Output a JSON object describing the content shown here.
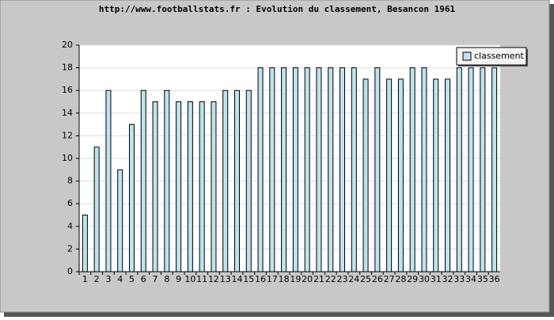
{
  "chart_data": {
    "type": "bar",
    "title": "http://www.footballstats.fr : Evolution du classement, Besancon 1961",
    "categories": [
      "1",
      "2",
      "3",
      "4",
      "5",
      "6",
      "7",
      "8",
      "9",
      "10",
      "11",
      "12",
      "13",
      "14",
      "15",
      "16",
      "17",
      "18",
      "19",
      "20",
      "21",
      "22",
      "23",
      "24",
      "25",
      "26",
      "27",
      "28",
      "29",
      "30",
      "31",
      "32",
      "33",
      "34",
      "35",
      "36"
    ],
    "series": [
      {
        "name": "classement",
        "color": "#bfe3ee",
        "values": [
          5,
          11,
          16,
          9,
          13,
          16,
          15,
          16,
          15,
          15,
          15,
          15,
          16,
          16,
          16,
          18,
          18,
          18,
          18,
          18,
          18,
          18,
          18,
          18,
          17,
          18,
          17,
          17,
          18,
          18,
          17,
          17,
          18,
          18,
          18,
          18
        ]
      }
    ],
    "ylim": [
      0,
      20
    ],
    "yticks": [
      0,
      2,
      4,
      6,
      8,
      10,
      12,
      14,
      16,
      18,
      20
    ],
    "grid": true,
    "legend": "top-right"
  }
}
